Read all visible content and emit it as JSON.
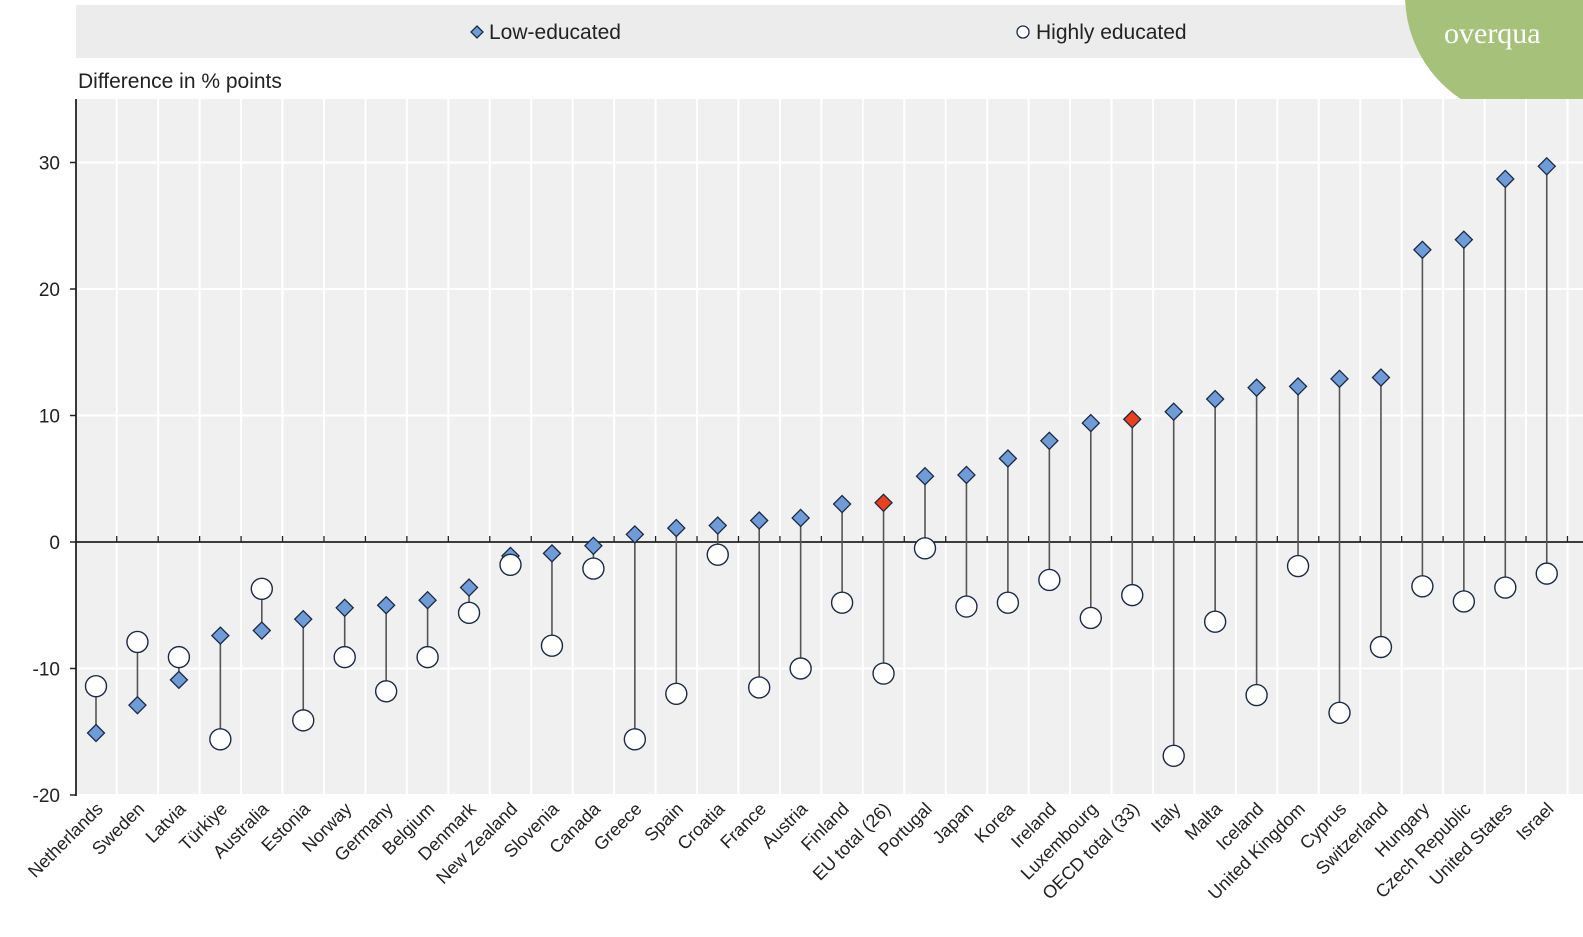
{
  "legend": {
    "low_label": "Low-educated",
    "high_label": "Highly educated"
  },
  "badge": {
    "text": "overqua"
  },
  "colors": {
    "low_marker": "#6f9bd6",
    "highlight_marker": "#e8411c",
    "high_marker_fill": "#ffffff",
    "marker_stroke": "#1a2a44",
    "connector": "#555555",
    "plot_bg": "#f0f0f0",
    "legend_bg": "#ececec",
    "badge": "#a6c27a"
  },
  "chart_data": {
    "type": "dot-range",
    "ylabel": "Difference in % points",
    "ylim": [
      -20,
      35
    ],
    "yticks": [
      30,
      20,
      10,
      0,
      -10,
      -20
    ],
    "grid": true,
    "legend_position": "top",
    "highlighted": [
      "EU total (26)",
      "OECD total (33)"
    ],
    "categories": [
      "Netherlands",
      "Sweden",
      "Latvia",
      "Türkiye",
      "Australia",
      "Estonia",
      "Norway",
      "Germany",
      "Belgium",
      "Denmark",
      "New Zealand",
      "Slovenia",
      "Canada",
      "Greece",
      "Spain",
      "Croatia",
      "France",
      "Austria",
      "Finland",
      "EU total (26)",
      "Portugal",
      "Japan",
      "Korea",
      "Ireland",
      "Luxembourg",
      "OECD total (33)",
      "Italy",
      "Malta",
      "Iceland",
      "United Kingdom",
      "Cyprus",
      "Switzerland",
      "Hungary",
      "Czech Republic",
      "United States",
      "Israel"
    ],
    "series": [
      {
        "name": "Low-educated",
        "marker": "diamond",
        "values": [
          -15.1,
          -12.9,
          -10.9,
          -7.4,
          -7.0,
          -6.1,
          -5.2,
          -5.0,
          -4.6,
          -3.6,
          -1.1,
          -0.9,
          -0.3,
          0.6,
          1.1,
          1.3,
          1.7,
          1.9,
          3.0,
          3.1,
          5.2,
          5.3,
          6.6,
          8.0,
          9.4,
          9.7,
          10.3,
          11.3,
          12.2,
          12.3,
          12.9,
          13.0,
          23.1,
          23.9,
          28.7,
          29.7
        ]
      },
      {
        "name": "Highly educated",
        "marker": "circle",
        "values": [
          -11.4,
          -7.9,
          -9.1,
          -15.6,
          -3.7,
          -14.1,
          -9.1,
          -11.8,
          -9.1,
          -5.6,
          -1.8,
          -8.2,
          -2.1,
          -15.6,
          -12.0,
          -1.0,
          -11.5,
          -10.0,
          -4.8,
          -10.4,
          -0.5,
          -5.1,
          -4.8,
          -3.0,
          -6.0,
          -4.2,
          -16.9,
          -6.3,
          -12.1,
          -1.9,
          -13.5,
          -8.3,
          -3.5,
          -4.7,
          -3.6,
          -2.5
        ]
      }
    ]
  }
}
